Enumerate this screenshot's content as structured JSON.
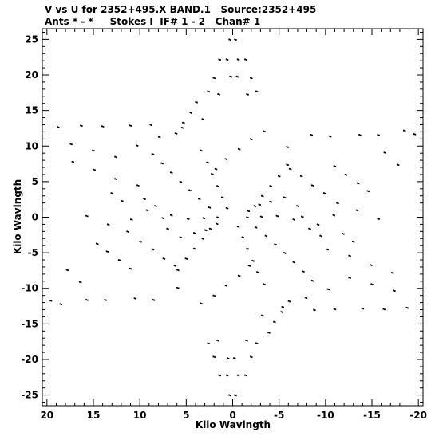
{
  "header": {
    "line1": "V vs U for 2352+495.X BAND.1   Source:2352+495",
    "line2": "Ants * - *     Stokes I  IF# 1 - 2   Chan# 1"
  },
  "chart_data": {
    "type": "scatter",
    "title": "V vs U for 2352+495.X BAND.1   Source:2352+495",
    "subtitle": "Ants * - *     Stokes I  IF# 1 - 2   Chan# 1",
    "xlabel": "Kilo Wavlngth",
    "ylabel": "Kilo Wavlngth",
    "xlim": [
      20.5,
      -20.5
    ],
    "ylim": [
      -26.5,
      26.5
    ],
    "x_ticks": [
      20,
      15,
      10,
      5,
      0,
      -5,
      -10,
      -15,
      -20
    ],
    "x_tick_labels": [
      "20",
      "15",
      "10",
      "5",
      "0",
      "-5",
      "-10",
      "-15",
      "-20"
    ],
    "y_ticks": [
      25,
      20,
      15,
      10,
      5,
      0,
      -5,
      -10,
      -15,
      -20,
      -25
    ],
    "y_tick_labels": [
      "25",
      "20",
      "15",
      "10",
      "5",
      "0",
      "-5",
      "-10",
      "-15",
      "-20",
      "-25"
    ],
    "x_inverted": true,
    "grid": false,
    "legend": "none",
    "marker_color": "#000000",
    "description_of_pattern": "six-armed star of uv tracks; points are mirrored (u,v) and (-u,-v)",
    "points": [
      [
        0.3,
        25.0
      ],
      [
        -0.3,
        25.0
      ],
      [
        -0.3,
        -25.0
      ],
      [
        0.3,
        -25.0
      ],
      [
        1.4,
        22.2
      ],
      [
        0.6,
        22.2
      ],
      [
        -0.6,
        22.2
      ],
      [
        -1.4,
        22.2
      ],
      [
        -1.4,
        -22.2
      ],
      [
        -0.6,
        -22.2
      ],
      [
        0.6,
        -22.2
      ],
      [
        1.4,
        -22.2
      ],
      [
        2.0,
        19.6
      ],
      [
        0.2,
        19.8
      ],
      [
        -0.5,
        19.8
      ],
      [
        -2.0,
        19.6
      ],
      [
        -2.0,
        -19.6
      ],
      [
        0.5,
        -19.8
      ],
      [
        -0.2,
        -19.8
      ],
      [
        2.0,
        -19.6
      ],
      [
        2.6,
        17.7
      ],
      [
        1.5,
        17.3
      ],
      [
        -1.6,
        17.3
      ],
      [
        -2.6,
        17.7
      ],
      [
        -2.6,
        -17.7
      ],
      [
        1.6,
        -17.3
      ],
      [
        -1.5,
        -17.3
      ],
      [
        2.6,
        -17.7
      ],
      [
        3.9,
        16.2
      ],
      [
        4.5,
        14.7
      ],
      [
        5.3,
        13.3
      ],
      [
        6.1,
        11.8
      ],
      [
        -3.9,
        -16.2
      ],
      [
        -4.5,
        -14.7
      ],
      [
        -5.3,
        -13.3
      ],
      [
        -6.1,
        -11.8
      ],
      [
        18.8,
        12.7
      ],
      [
        17.4,
        10.3
      ],
      [
        15.0,
        9.4
      ],
      [
        12.6,
        8.5
      ],
      [
        -18.8,
        -12.7
      ],
      [
        -17.4,
        -10.3
      ],
      [
        -15.0,
        -9.4
      ],
      [
        -12.6,
        -8.5
      ],
      [
        16.3,
        12.9
      ],
      [
        14.0,
        12.8
      ],
      [
        11.0,
        12.9
      ],
      [
        8.8,
        13.0
      ],
      [
        -16.3,
        -12.9
      ],
      [
        -14.0,
        -12.8
      ],
      [
        -11.0,
        -12.9
      ],
      [
        -8.8,
        -13.0
      ],
      [
        17.2,
        7.8
      ],
      [
        14.9,
        6.7
      ],
      [
        12.6,
        5.4
      ],
      [
        10.2,
        4.5
      ],
      [
        -17.2,
        -7.8
      ],
      [
        -14.9,
        -6.7
      ],
      [
        -12.6,
        -5.4
      ],
      [
        -10.2,
        -4.5
      ],
      [
        13.0,
        3.4
      ],
      [
        11.9,
        2.3
      ],
      [
        9.2,
        1.0
      ],
      [
        7.5,
        -0.1
      ],
      [
        -13.0,
        -3.4
      ],
      [
        -11.9,
        -2.3
      ],
      [
        -9.2,
        -1.0
      ],
      [
        -7.5,
        0.1
      ],
      [
        14.6,
        -3.7
      ],
      [
        13.5,
        -4.8
      ],
      [
        12.2,
        -6.0
      ],
      [
        11.0,
        -7.2
      ],
      [
        -14.6,
        3.7
      ],
      [
        -13.5,
        4.8
      ],
      [
        -12.2,
        6.0
      ],
      [
        -11.0,
        7.2
      ],
      [
        17.8,
        -7.4
      ],
      [
        16.4,
        -9.1
      ],
      [
        13.7,
        -11.6
      ],
      [
        10.5,
        -11.4
      ],
      [
        -17.8,
        7.4
      ],
      [
        -16.4,
        9.1
      ],
      [
        -13.7,
        11.6
      ],
      [
        -10.5,
        11.4
      ],
      [
        19.6,
        -11.7
      ],
      [
        18.5,
        -12.2
      ],
      [
        15.7,
        -11.6
      ],
      [
        8.5,
        -11.6
      ],
      [
        -19.6,
        11.7
      ],
      [
        -18.5,
        12.2
      ],
      [
        -15.7,
        11.6
      ],
      [
        -8.5,
        11.6
      ],
      [
        5.9,
        -7.4
      ],
      [
        5.0,
        -5.8
      ],
      [
        4.1,
        -4.4
      ],
      [
        3.2,
        -3.0
      ],
      [
        2.4,
        -1.6
      ],
      [
        -5.9,
        7.4
      ],
      [
        -5.0,
        5.8
      ],
      [
        -4.1,
        4.4
      ],
      [
        -3.2,
        3.0
      ],
      [
        -2.4,
        1.6
      ],
      [
        8.6,
        8.9
      ],
      [
        7.6,
        7.6
      ],
      [
        6.6,
        6.3
      ],
      [
        5.6,
        5.0
      ],
      [
        4.6,
        3.8
      ],
      [
        3.6,
        2.6
      ],
      [
        2.5,
        1.4
      ],
      [
        -8.6,
        -8.9
      ],
      [
        -7.6,
        -7.6
      ],
      [
        -6.6,
        -6.3
      ],
      [
        -5.6,
        -5.0
      ],
      [
        -4.6,
        -3.8
      ],
      [
        -3.6,
        -2.6
      ],
      [
        -2.5,
        -1.4
      ],
      [
        9.5,
        2.6
      ],
      [
        8.3,
        1.6
      ],
      [
        6.6,
        0.3
      ],
      [
        4.8,
        -0.2
      ],
      [
        3.1,
        -0.1
      ],
      [
        1.6,
        0.0
      ],
      [
        -9.5,
        -2.6
      ],
      [
        -8.3,
        -1.6
      ],
      [
        -6.6,
        -0.3
      ],
      [
        -4.8,
        0.2
      ],
      [
        -3.1,
        0.1
      ],
      [
        -1.6,
        0.0
      ],
      [
        11.3,
        -2.0
      ],
      [
        9.9,
        -3.4
      ],
      [
        8.6,
        -4.5
      ],
      [
        7.4,
        -5.8
      ],
      [
        6.2,
        -6.8
      ],
      [
        -11.3,
        2.0
      ],
      [
        -9.9,
        3.4
      ],
      [
        -8.6,
        4.5
      ],
      [
        -7.4,
        5.8
      ],
      [
        -6.2,
        6.8
      ],
      [
        3.4,
        9.4
      ],
      [
        2.7,
        7.7
      ],
      [
        2.2,
        6.1
      ],
      [
        1.6,
        4.4
      ],
      [
        1.1,
        2.8
      ],
      [
        0.6,
        1.3
      ],
      [
        -3.4,
        -9.4
      ],
      [
        -2.7,
        -7.7
      ],
      [
        -2.2,
        -6.1
      ],
      [
        -1.6,
        -4.4
      ],
      [
        -1.1,
        -2.8
      ],
      [
        -0.6,
        -1.3
      ],
      [
        3.4,
        -12.1
      ],
      [
        2.0,
        -11.0
      ],
      [
        0.7,
        -9.6
      ],
      [
        -0.7,
        -8.2
      ],
      [
        -1.8,
        -6.8
      ],
      [
        -3.4,
        12.1
      ],
      [
        -2.0,
        11.0
      ],
      [
        -0.7,
        9.6
      ],
      [
        0.7,
        8.2
      ],
      [
        1.8,
        6.8
      ],
      [
        7.0,
        -1.6
      ],
      [
        5.6,
        -2.8
      ],
      [
        4.1,
        -2.2
      ],
      [
        2.9,
        -1.8
      ],
      [
        1.7,
        -0.9
      ],
      [
        -7.0,
        1.6
      ],
      [
        -5.6,
        2.8
      ],
      [
        -4.1,
        2.2
      ],
      [
        -2.9,
        1.8
      ],
      [
        -1.7,
        0.9
      ],
      [
        10.3,
        10.1
      ],
      [
        7.9,
        11.3
      ],
      [
        5.4,
        12.6
      ],
      [
        3.2,
        13.8
      ],
      [
        -10.3,
        -10.1
      ],
      [
        -7.9,
        -11.3
      ],
      [
        -5.4,
        -12.6
      ],
      [
        -3.2,
        -13.8
      ],
      [
        15.7,
        0.2
      ],
      [
        13.4,
        -1.0
      ],
      [
        10.9,
        -0.3
      ],
      [
        5.9,
        -9.9
      ],
      [
        -15.7,
        -0.2
      ],
      [
        -13.4,
        1.0
      ],
      [
        -10.9,
        0.3
      ],
      [
        -5.9,
        9.9
      ]
    ]
  }
}
